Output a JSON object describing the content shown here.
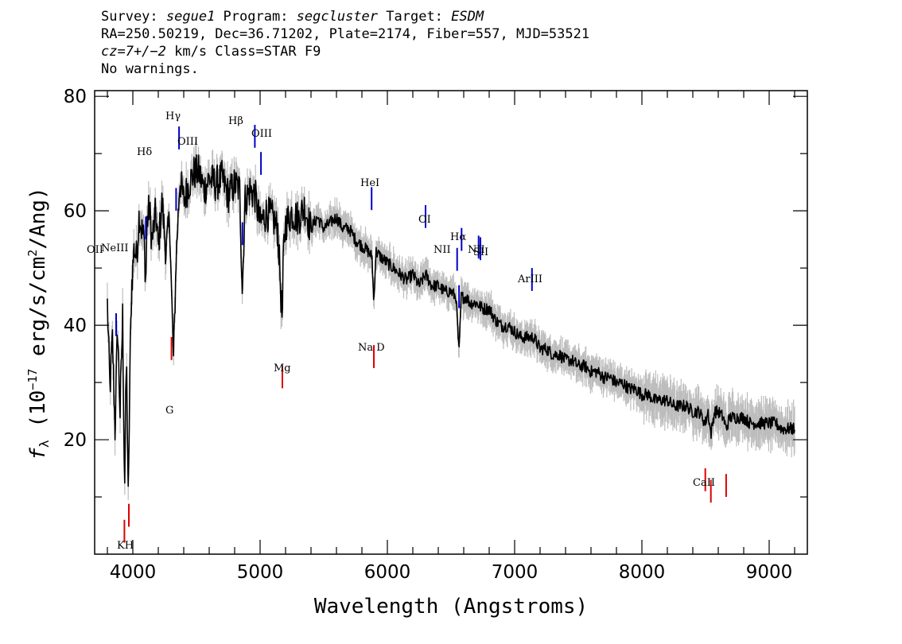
{
  "header": {
    "line1": {
      "survey_label": "Survey: ",
      "survey": "segue1",
      "program_label": " Program: ",
      "program": "segcluster",
      "target_label": " Target: ",
      "target": "ESDM"
    },
    "line2": "RA=250.50219, Dec=36.71202, Plate=2174, Fiber=557, MJD=53521",
    "line3": {
      "cz": "cz=7+/−2",
      "rest": " km/s Class=STAR F9"
    },
    "line4": "No warnings."
  },
  "chart_data": {
    "type": "line",
    "title": "",
    "xlabel": "Wavelength (Angstroms)",
    "ylabel": "fλ (10^-17 erg/s/cm^2/Ang)",
    "ylabel_parts": {
      "f": "f",
      "lambda": "λ",
      "open": " (10",
      "exp": "−17",
      "mid": " erg/s/cm",
      "exp2": "2",
      "close": "/Ang)"
    },
    "xlim": [
      3700,
      9300
    ],
    "ylim": [
      0,
      81
    ],
    "xticks": [
      4000,
      5000,
      6000,
      7000,
      8000,
      9000
    ],
    "xtick_labels": [
      "4000",
      "5000",
      "6000",
      "7000",
      "8000",
      "9000"
    ],
    "yticks": [
      20,
      40,
      60,
      80
    ],
    "ytick_labels": [
      "20",
      "40",
      "60",
      "80"
    ],
    "grid": false,
    "colors": {
      "spectrum": "#000000",
      "error": "#bdbdbd",
      "emission": "#0000cc",
      "absorption": "#dd0000"
    },
    "series": [
      {
        "x": [
          3800,
          3820,
          3840,
          3860,
          3880,
          3900,
          3920,
          3935,
          3950,
          3965,
          3975,
          3990,
          4010,
          4030,
          4050,
          4070,
          4090,
          4102,
          4110,
          4130,
          4150,
          4180,
          4200,
          4230,
          4260,
          4290,
          4305,
          4320,
          4340,
          4370,
          4400,
          4440,
          4480,
          4520,
          4560,
          4600,
          4650,
          4700,
          4750,
          4800,
          4840,
          4861,
          4880,
          4920,
          4960,
          5000,
          5050,
          5100,
          5140,
          5167,
          5175,
          5183,
          5200,
          5250,
          5300,
          5350,
          5400,
          5450,
          5500,
          5550,
          5600,
          5650,
          5700,
          5750,
          5800,
          5850,
          5880,
          5893,
          5910,
          5950,
          6000,
          6050,
          6100,
          6150,
          6200,
          6250,
          6300,
          6350,
          6400,
          6450,
          6500,
          6540,
          6563,
          6580,
          6620,
          6650,
          6700,
          6750,
          6800,
          6850,
          6900,
          6950,
          7000,
          7050,
          7100,
          7150,
          7200,
          7250,
          7300,
          7350,
          7400,
          7450,
          7500,
          7550,
          7600,
          7650,
          7700,
          7750,
          7800,
          7850,
          7900,
          7950,
          8000,
          8050,
          8100,
          8150,
          8200,
          8250,
          8300,
          8350,
          8400,
          8450,
          8498,
          8520,
          8542,
          8570,
          8600,
          8640,
          8662,
          8690,
          8750,
          8800,
          8850,
          8900,
          8950,
          9000,
          9050,
          9100,
          9150,
          9200
        ],
        "y": [
          44,
          29,
          38,
          22,
          40,
          25,
          42,
          12,
          35,
          8,
          30,
          47,
          54,
          52,
          60,
          57,
          55,
          47,
          58,
          61,
          55,
          60,
          54,
          62,
          53,
          59,
          45,
          34,
          52,
          66,
          62,
          65,
          67,
          67,
          64,
          66,
          65,
          66,
          63,
          65,
          64,
          46,
          62,
          64,
          63,
          58,
          60,
          59,
          57,
          44,
          41,
          53,
          58,
          60,
          59,
          61,
          57,
          59,
          57,
          58,
          59,
          57,
          57,
          55,
          54,
          53,
          52,
          44,
          53,
          52,
          51,
          50,
          49,
          48,
          49,
          47,
          49,
          47,
          47,
          46,
          46,
          45,
          35,
          45,
          45,
          44,
          44,
          43,
          43,
          41,
          40,
          40,
          39,
          38,
          38,
          38,
          36,
          36,
          35,
          35,
          34,
          34,
          33,
          33,
          32,
          32,
          31,
          31,
          30,
          30,
          29,
          29,
          28,
          28,
          27,
          27,
          27,
          26,
          26,
          26,
          25,
          25,
          23,
          25,
          21,
          25,
          25,
          24,
          22,
          24,
          24,
          24,
          23,
          23,
          23,
          23,
          23,
          22,
          22,
          22
        ]
      }
    ],
    "emission_lines": [
      {
        "label": "OII",
        "x": 3727
      },
      {
        "label": "NeIII",
        "x": 3869
      },
      {
        "label": "Hδ",
        "x": 4102
      },
      {
        "label": "Hγ",
        "x": 4340
      },
      {
        "label": "OIII",
        "x": 4363
      },
      {
        "label": "Hβ",
        "x": 4861
      },
      {
        "label": "OIII",
        "x": 4959
      },
      {
        "label": "OIII",
        "x": 5007
      },
      {
        "label": "HeI",
        "x": 5876
      },
      {
        "label": "OI",
        "x": 6300
      },
      {
        "label": "NII",
        "x": 6548
      },
      {
        "label": "Hα",
        "x": 6563
      },
      {
        "label": "NII",
        "x": 6583
      },
      {
        "label": "SII",
        "x": 6717
      },
      {
        "label": "SII",
        "x": 6731
      },
      {
        "label": "ArIII",
        "x": 7136
      }
    ],
    "absorption_lines": [
      {
        "label": "K",
        "x": 3934
      },
      {
        "label": "H",
        "x": 3969
      },
      {
        "label": "G",
        "x": 4304
      },
      {
        "label": "Mg",
        "x": 5175
      },
      {
        "label": "Na D",
        "x": 5894
      },
      {
        "label": "CaII",
        "x": 8498
      },
      {
        "label": "CaII",
        "x": 8542
      },
      {
        "label": "CaII",
        "x": 8662
      }
    ],
    "visible_line_labels": [
      {
        "id": "oii",
        "text": "OII"
      },
      {
        "id": "neiii",
        "text": "NeIII"
      },
      {
        "id": "hd",
        "text": "Hδ"
      },
      {
        "id": "hg",
        "text": "Hγ"
      },
      {
        "id": "oiii1",
        "text": "OIII"
      },
      {
        "id": "hb",
        "text": "Hβ"
      },
      {
        "id": "oiii2",
        "text": "OIII"
      },
      {
        "id": "hei",
        "text": "HeI"
      },
      {
        "id": "oi",
        "text": "OI"
      },
      {
        "id": "nii1",
        "text": "NII"
      },
      {
        "id": "ha",
        "text": "Hα"
      },
      {
        "id": "nii2",
        "text": "NII"
      },
      {
        "id": "sii",
        "text": "SII"
      },
      {
        "id": "ariii",
        "text": "ArIII"
      },
      {
        "id": "kh",
        "text": "KH"
      },
      {
        "id": "g",
        "text": "G"
      },
      {
        "id": "mg",
        "text": "Mg"
      },
      {
        "id": "nad",
        "text": "Na D"
      },
      {
        "id": "caii",
        "text": "CaII"
      }
    ]
  }
}
